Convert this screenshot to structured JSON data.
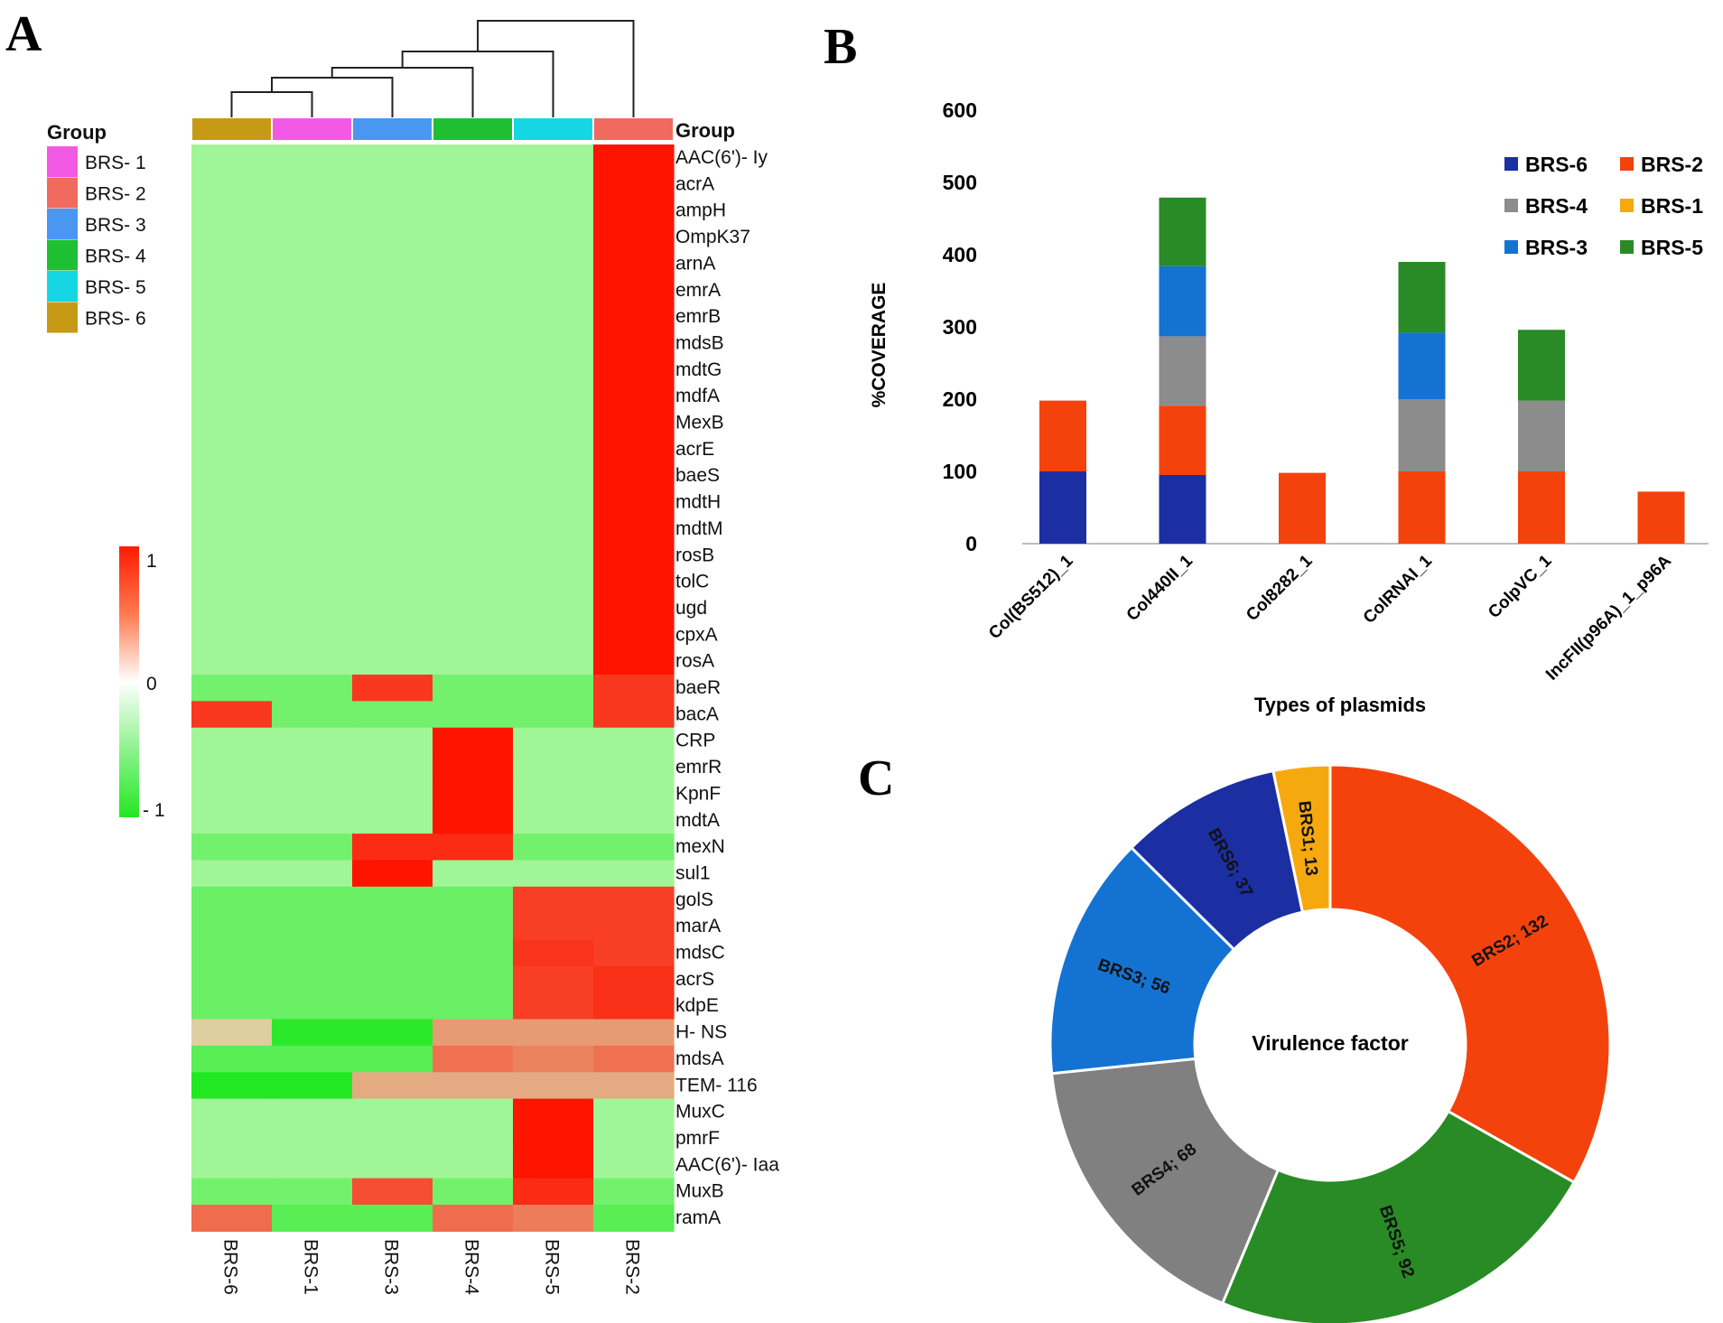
{
  "panels": {
    "a": "A",
    "b": "B",
    "c": "C"
  },
  "heatmap": {
    "type": "heatmap",
    "group_label": "Group",
    "legend_title": "Group",
    "legend_items": [
      {
        "label": "BRS- 1",
        "color": "#f25ae6"
      },
      {
        "label": "BRS- 2",
        "color": "#f06a5e"
      },
      {
        "label": "BRS- 3",
        "color": "#4a97f2"
      },
      {
        "label": "BRS- 4",
        "color": "#1fbf33"
      },
      {
        "label": "BRS- 5",
        "color": "#17d6e3"
      },
      {
        "label": "BRS- 6",
        "color": "#c79a16"
      }
    ],
    "columns": [
      "BRS-6",
      "BRS-1",
      "BRS-3",
      "BRS-4",
      "BRS-5",
      "BRS-2"
    ],
    "column_colors": [
      "#c79a16",
      "#f25ae6",
      "#4a97f2",
      "#1fbf33",
      "#17d6e3",
      "#f06a5e"
    ],
    "scale": {
      "max_label": "1",
      "mid_label": "0",
      "min_label": "- 1",
      "range": [
        -1,
        1
      ]
    },
    "rows": [
      {
        "gene": "AAC(6')- Iy",
        "values": [
          -0.3,
          -0.3,
          -0.3,
          -0.3,
          -0.3,
          1
        ]
      },
      {
        "gene": "acrA",
        "values": [
          -0.3,
          -0.3,
          -0.3,
          -0.3,
          -0.3,
          1
        ]
      },
      {
        "gene": "ampH",
        "values": [
          -0.3,
          -0.3,
          -0.3,
          -0.3,
          -0.3,
          1
        ]
      },
      {
        "gene": "OmpK37",
        "values": [
          -0.3,
          -0.3,
          -0.3,
          -0.3,
          -0.3,
          1
        ]
      },
      {
        "gene": "arnA",
        "values": [
          -0.3,
          -0.3,
          -0.3,
          -0.3,
          -0.3,
          1
        ]
      },
      {
        "gene": "emrA",
        "values": [
          -0.3,
          -0.3,
          -0.3,
          -0.3,
          -0.3,
          1
        ]
      },
      {
        "gene": "emrB",
        "values": [
          -0.3,
          -0.3,
          -0.3,
          -0.3,
          -0.3,
          1
        ]
      },
      {
        "gene": "mdsB",
        "values": [
          -0.3,
          -0.3,
          -0.3,
          -0.3,
          -0.3,
          1
        ]
      },
      {
        "gene": "mdtG",
        "values": [
          -0.3,
          -0.3,
          -0.3,
          -0.3,
          -0.3,
          1
        ]
      },
      {
        "gene": "mdfA",
        "values": [
          -0.3,
          -0.3,
          -0.3,
          -0.3,
          -0.3,
          1
        ]
      },
      {
        "gene": "MexB",
        "values": [
          -0.3,
          -0.3,
          -0.3,
          -0.3,
          -0.3,
          1
        ]
      },
      {
        "gene": "acrE",
        "values": [
          -0.3,
          -0.3,
          -0.3,
          -0.3,
          -0.3,
          1
        ]
      },
      {
        "gene": "baeS",
        "values": [
          -0.3,
          -0.3,
          -0.3,
          -0.3,
          -0.3,
          1
        ]
      },
      {
        "gene": "mdtH",
        "values": [
          -0.3,
          -0.3,
          -0.3,
          -0.3,
          -0.3,
          1
        ]
      },
      {
        "gene": "mdtM",
        "values": [
          -0.3,
          -0.3,
          -0.3,
          -0.3,
          -0.3,
          1
        ]
      },
      {
        "gene": "rosB",
        "values": [
          -0.3,
          -0.3,
          -0.3,
          -0.3,
          -0.3,
          1
        ]
      },
      {
        "gene": "tolC",
        "values": [
          -0.3,
          -0.3,
          -0.3,
          -0.3,
          -0.3,
          1
        ]
      },
      {
        "gene": "ugd",
        "values": [
          -0.3,
          -0.3,
          -0.3,
          -0.3,
          -0.3,
          1
        ]
      },
      {
        "gene": "cpxA",
        "values": [
          -0.3,
          -0.3,
          -0.3,
          -0.3,
          -0.3,
          1
        ]
      },
      {
        "gene": "rosA",
        "values": [
          -0.3,
          -0.3,
          -0.3,
          -0.3,
          -0.3,
          1
        ]
      },
      {
        "gene": "baeR",
        "values": [
          -0.55,
          -0.55,
          0.85,
          -0.55,
          -0.55,
          0.85
        ]
      },
      {
        "gene": "bacA",
        "values": [
          0.85,
          -0.55,
          -0.55,
          -0.55,
          -0.55,
          0.85
        ]
      },
      {
        "gene": "CRP",
        "values": [
          -0.3,
          -0.3,
          -0.3,
          1,
          -0.3,
          -0.3
        ]
      },
      {
        "gene": "emrR",
        "values": [
          -0.3,
          -0.3,
          -0.3,
          1,
          -0.3,
          -0.3
        ]
      },
      {
        "gene": "KpnF",
        "values": [
          -0.3,
          -0.3,
          -0.3,
          1,
          -0.3,
          -0.3
        ]
      },
      {
        "gene": "mdtA",
        "values": [
          -0.3,
          -0.3,
          -0.3,
          1,
          -0.3,
          -0.3
        ]
      },
      {
        "gene": "mexN",
        "values": [
          -0.55,
          -0.55,
          0.9,
          0.9,
          -0.55,
          -0.55
        ]
      },
      {
        "gene": "sul1",
        "values": [
          -0.3,
          -0.3,
          1,
          -0.3,
          -0.3,
          -0.3
        ]
      },
      {
        "gene": "golS",
        "values": [
          -0.6,
          -0.6,
          -0.6,
          -0.6,
          0.82,
          0.82
        ]
      },
      {
        "gene": "marA",
        "values": [
          -0.6,
          -0.6,
          -0.6,
          -0.6,
          0.82,
          0.82
        ]
      },
      {
        "gene": "mdsC",
        "values": [
          -0.6,
          -0.6,
          -0.6,
          -0.6,
          0.86,
          0.82
        ]
      },
      {
        "gene": "acrS",
        "values": [
          -0.6,
          -0.6,
          -0.6,
          -0.6,
          0.82,
          0.88
        ]
      },
      {
        "gene": "kdpE",
        "values": [
          -0.6,
          -0.6,
          -0.6,
          -0.6,
          0.82,
          0.88
        ]
      },
      {
        "gene": "H- NS",
        "values": [
          0.2,
          -0.95,
          -0.95,
          0.42,
          0.42,
          0.42
        ]
      },
      {
        "gene": "mdsA",
        "values": [
          -0.7,
          -0.7,
          -0.7,
          0.6,
          0.52,
          0.6
        ]
      },
      {
        "gene": "TEM- 116",
        "values": [
          -1,
          -1,
          0.35,
          0.35,
          0.35,
          0.35
        ]
      },
      {
        "gene": "MuxC",
        "values": [
          -0.3,
          -0.3,
          -0.3,
          -0.3,
          1,
          -0.3
        ]
      },
      {
        "gene": "pmrF",
        "values": [
          -0.3,
          -0.3,
          -0.3,
          -0.3,
          1,
          -0.3
        ]
      },
      {
        "gene": "AAC(6')- Iaa",
        "values": [
          -0.3,
          -0.3,
          -0.3,
          -0.3,
          1,
          -0.3
        ]
      },
      {
        "gene": "MuxB",
        "values": [
          -0.55,
          -0.55,
          0.75,
          -0.55,
          0.9,
          -0.55
        ]
      },
      {
        "gene": "ramA",
        "values": [
          0.62,
          -0.7,
          -0.7,
          0.62,
          0.55,
          -0.7
        ]
      }
    ]
  },
  "bar_chart": {
    "type": "bar",
    "stacked": true,
    "categories": [
      "Col(BS512)_1",
      "Col440II_1",
      "Col8282_1",
      "ColRNAI_1",
      "ColpVC_1",
      "IncFII(p96A)_1_p96A"
    ],
    "series": [
      {
        "name": "BRS-6",
        "color": "#1b2fa3",
        "values": [
          100,
          95,
          0,
          0,
          0,
          0
        ]
      },
      {
        "name": "BRS-2",
        "color": "#f4420c",
        "values": [
          98,
          96,
          98,
          100,
          100,
          72
        ]
      },
      {
        "name": "BRS-4",
        "color": "#8c8c8c",
        "values": [
          0,
          96,
          0,
          100,
          98,
          0
        ]
      },
      {
        "name": "BRS-1",
        "color": "#f6a90e",
        "values": [
          0,
          0,
          0,
          0,
          0,
          0
        ]
      },
      {
        "name": "BRS-3",
        "color": "#1473d2",
        "values": [
          0,
          97,
          0,
          92,
          0,
          0
        ]
      },
      {
        "name": "BRS-5",
        "color": "#298b25",
        "values": [
          0,
          95,
          0,
          98,
          98,
          0
        ]
      }
    ],
    "ylabel": "%COVERAGE",
    "xlabel": "Types of plasmids",
    "ylim": [
      0,
      600
    ],
    "yticks": [
      0,
      100,
      200,
      300,
      400,
      500,
      600
    ]
  },
  "donut_chart": {
    "type": "pie",
    "center_label": "Virulence factor",
    "slices": [
      {
        "label": "BRS2; 132",
        "value": 132,
        "color": "#f4420c"
      },
      {
        "label": "BRS5; 92",
        "value": 92,
        "color": "#298b25"
      },
      {
        "label": "BRS4; 68",
        "value": 68,
        "color": "#808080"
      },
      {
        "label": "BRS3; 56",
        "value": 56,
        "color": "#1473d2"
      },
      {
        "label": "BRS6; 37",
        "value": 37,
        "color": "#1b2fa3"
      },
      {
        "label": "BRS1; 13",
        "value": 13,
        "color": "#f6a90e"
      }
    ]
  }
}
